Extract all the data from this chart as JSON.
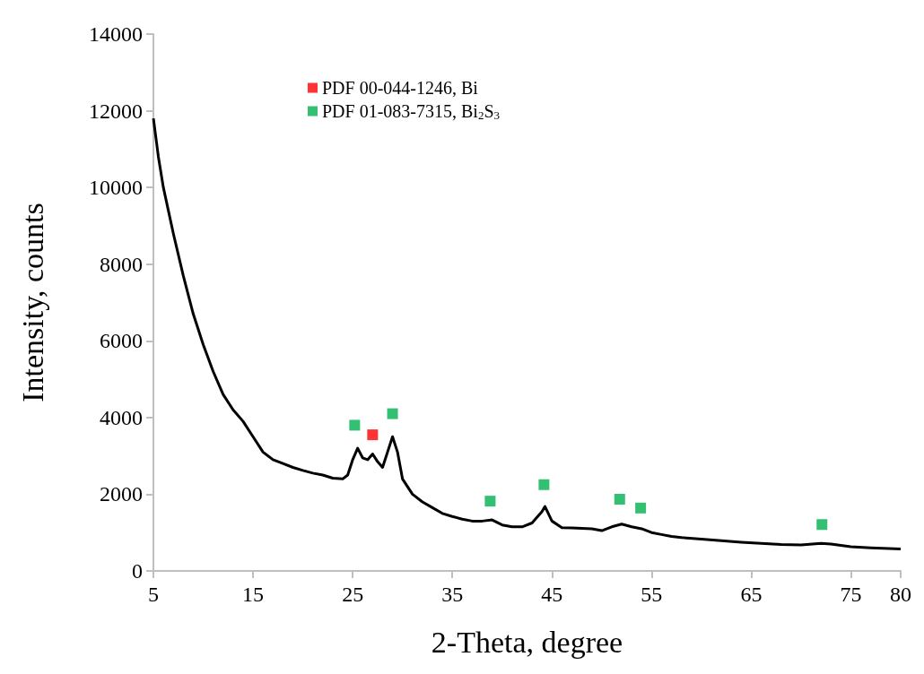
{
  "chart_data": {
    "type": "line",
    "xlabel": "2-Theta, degree",
    "ylabel": "Intensity, counts",
    "xlim": [
      5,
      80
    ],
    "xticks": [
      5,
      15,
      25,
      35,
      45,
      55,
      65,
      75,
      80
    ],
    "ylim": [
      0,
      14000
    ],
    "yticks": [
      0,
      2000,
      4000,
      6000,
      8000,
      10000,
      12000,
      14000
    ],
    "grid": false,
    "legend": "top",
    "marker": "none",
    "line_style": "solid",
    "series": [
      {
        "color": "#000000",
        "x": [
          5,
          5.5,
          6,
          7,
          8,
          9,
          10,
          11,
          12,
          13,
          14,
          15,
          16,
          17,
          18,
          19,
          20,
          21,
          22,
          23,
          24,
          24.5,
          25,
          25.5,
          26,
          26.5,
          27,
          27.5,
          28,
          28.5,
          29,
          29.5,
          30,
          31,
          32,
          33,
          34,
          35,
          36,
          37,
          38,
          39,
          40,
          41,
          42,
          43,
          44,
          44.3,
          45,
          46,
          47,
          48,
          49,
          50,
          51,
          52,
          53,
          54,
          55,
          56,
          57,
          58,
          60,
          62,
          64,
          66,
          68,
          70,
          72,
          73,
          75,
          77,
          80
        ],
        "values": [
          11800,
          10800,
          10000,
          8800,
          7700,
          6700,
          5900,
          5200,
          4600,
          4200,
          3900,
          3500,
          3100,
          2900,
          2800,
          2700,
          2620,
          2550,
          2500,
          2420,
          2400,
          2500,
          2900,
          3200,
          2950,
          2900,
          3050,
          2850,
          2700,
          3100,
          3500,
          3100,
          2400,
          2000,
          1800,
          1650,
          1500,
          1420,
          1350,
          1300,
          1300,
          1330,
          1200,
          1150,
          1150,
          1250,
          1550,
          1680,
          1300,
          1130,
          1120,
          1110,
          1100,
          1050,
          1150,
          1220,
          1150,
          1100,
          1000,
          950,
          900,
          870,
          830,
          790,
          750,
          720,
          690,
          680,
          720,
          700,
          630,
          600,
          570
        ]
      },
      {
        "type": "scatter",
        "marker": "square",
        "name": "PDF 00-044-1246, Bi",
        "color": "#ff0000",
        "x": [
          27.0
        ],
        "values": [
          3550
        ]
      },
      {
        "type": "scatter",
        "marker": "square",
        "name": "PDF 01-083-7315, Bi$_{2}$S$_{3}$",
        "color": "#00b050",
        "x": [
          25.2,
          29.0,
          38.8,
          44.2,
          51.8,
          53.9,
          72.1
        ],
        "values": [
          3800,
          4100,
          1820,
          2250,
          1870,
          1640,
          1210
        ]
      }
    ]
  }
}
